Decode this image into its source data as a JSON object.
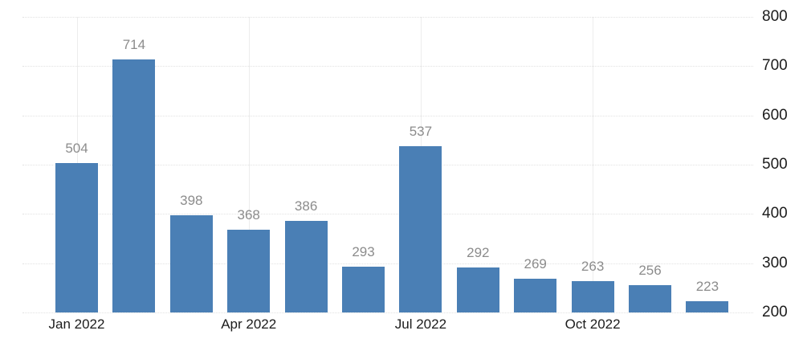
{
  "chart_data": {
    "type": "bar",
    "title": "",
    "values": [
      504,
      714,
      398,
      368,
      386,
      293,
      537,
      292,
      269,
      263,
      256,
      223
    ],
    "data_labels": [
      "504",
      "714",
      "398",
      "368",
      "386",
      "293",
      "537",
      "292",
      "269",
      "263",
      "256",
      "223"
    ],
    "bar_count": 12,
    "x_ticks": [
      {
        "index": 0,
        "label": "Jan 2022"
      },
      {
        "index": 3,
        "label": "Apr 2022"
      },
      {
        "index": 6,
        "label": "Jul 2022"
      },
      {
        "index": 9,
        "label": "Oct 2022"
      }
    ],
    "y_ticks": [
      200,
      300,
      400,
      500,
      600,
      700,
      800
    ],
    "y_tick_labels": [
      "200",
      "300",
      "400",
      "500",
      "600",
      "700",
      "800"
    ],
    "ylim": [
      200,
      800
    ],
    "y_axis_side": "right",
    "grid": "on",
    "grid_style": "dotted",
    "legend": "none",
    "colors": {
      "bar": "#4a7fb5",
      "value_label": "#8c8c8c",
      "tick_label": "#1c1c1c",
      "gridline": "#e2e2e2",
      "vertical_gridline": "#ededed",
      "background": "#ffffff"
    }
  }
}
